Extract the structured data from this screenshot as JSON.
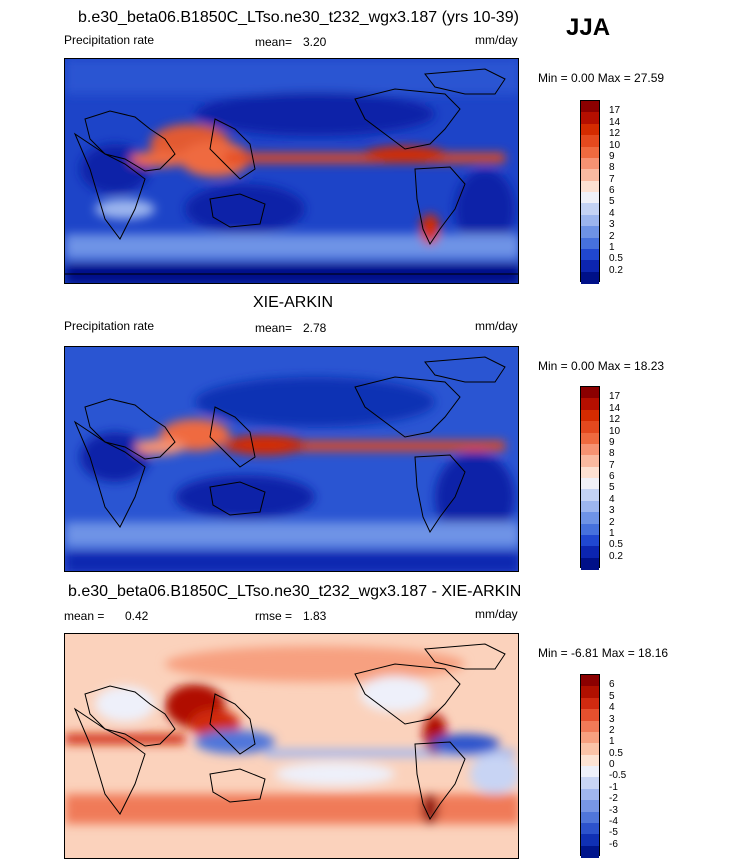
{
  "season": "JJA",
  "panels": [
    {
      "title": "b.e30_beta06.B1850C_LTso.ne30_t232_wgx3.187 (yrs 10-39)",
      "left_label": "Precipitation rate",
      "center_label": "mean=",
      "center_value": "3.20",
      "right_label": "mm/day",
      "minmax": "Min =   0.00 Max =  27.59",
      "colorbar": {
        "labels": [
          "17",
          "14",
          "12",
          "10",
          "9",
          "8",
          "7",
          "6",
          "5",
          "4",
          "3",
          "2",
          "1",
          "0.5",
          "0.2"
        ],
        "colors": [
          "#8b0000",
          "#b50f00",
          "#d42b00",
          "#e4491e",
          "#ef6a3f",
          "#f69272",
          "#fab9a0",
          "#fde0d2",
          "#f0f0f8",
          "#c4d2f4",
          "#9cb5ee",
          "#6e93e6",
          "#4671dd",
          "#2047d0",
          "#0c25b0",
          "#001088"
        ]
      }
    },
    {
      "title": "XIE-ARKIN",
      "left_label": "Precipitation rate",
      "center_label": "mean=",
      "center_value": "2.78",
      "right_label": "mm/day",
      "minmax": "Min =   0.00 Max =  18.23",
      "colorbar": {
        "labels": [
          "17",
          "14",
          "12",
          "10",
          "9",
          "8",
          "7",
          "6",
          "5",
          "4",
          "3",
          "2",
          "1",
          "0.5",
          "0.2"
        ],
        "colors": [
          "#8b0000",
          "#b50f00",
          "#d42b00",
          "#e4491e",
          "#ef6a3f",
          "#f69272",
          "#fab9a0",
          "#fde0d2",
          "#f0f0f8",
          "#c4d2f4",
          "#9cb5ee",
          "#6e93e6",
          "#4671dd",
          "#2047d0",
          "#0c25b0",
          "#001088"
        ]
      }
    },
    {
      "title": "b.e30_beta06.B1850C_LTso.ne30_t232_wgx3.187 - XIE-ARKIN",
      "left_label": "mean =",
      "left_value": "0.42",
      "center_label": "rmse =",
      "center_value": "1.83",
      "right_label": "mm/day",
      "minmax": "Min =  -6.81 Max =  18.16",
      "colorbar": {
        "labels": [
          "6",
          "5",
          "4",
          "3",
          "2",
          "1",
          "0.5",
          "0",
          "-0.5",
          "-1",
          "-2",
          "-3",
          "-4",
          "-5",
          "-6"
        ],
        "colors": [
          "#8b0000",
          "#b01000",
          "#d02a10",
          "#e4502e",
          "#f07a58",
          "#f7a080",
          "#fbc3a8",
          "#fde3d4",
          "#eef0fa",
          "#c8d4f4",
          "#a0b6ee",
          "#7896e4",
          "#5076da",
          "#2c52cc",
          "#1030b4",
          "#00158c"
        ]
      }
    }
  ]
}
